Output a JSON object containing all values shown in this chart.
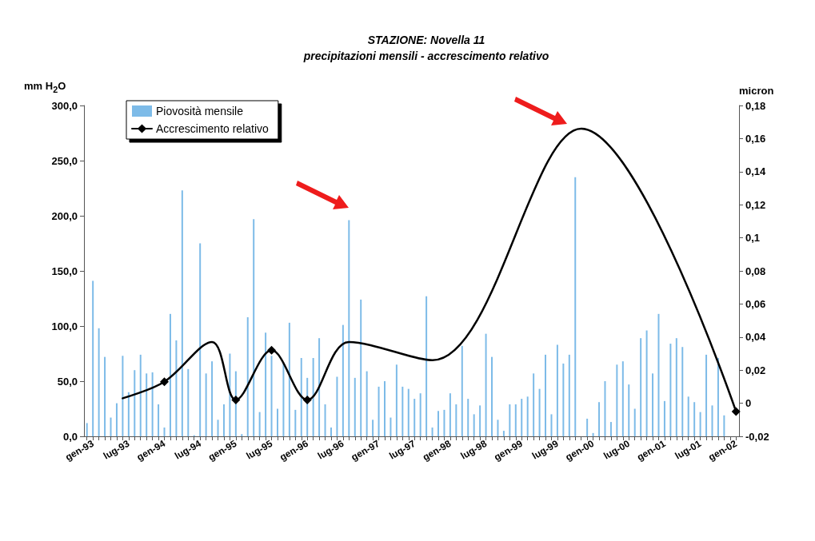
{
  "chart_data": {
    "type": "bar",
    "title": "STAZIONE: Novella 11",
    "subtitle": "precipitazioni mensili - accrescimento relativo",
    "ylabel": "mm H$_{2}$O",
    "y2label": "micron",
    "categories": [
      null,
      "gen-93",
      null,
      null,
      null,
      null,
      null,
      "lug-93",
      null,
      null,
      null,
      null,
      null,
      "gen-94",
      null,
      null,
      null,
      null,
      null,
      "lug-94",
      null,
      null,
      null,
      null,
      null,
      "gen-95",
      null,
      null,
      null,
      null,
      null,
      "lug-95",
      null,
      null,
      null,
      null,
      null,
      "gen-96",
      null,
      null,
      null,
      null,
      null,
      "lug-96",
      null,
      null,
      null,
      null,
      null,
      "gen-97",
      null,
      null,
      null,
      null,
      null,
      "lug-97",
      null,
      null,
      null,
      null,
      null,
      "gen-98",
      null,
      null,
      null,
      null,
      null,
      "lug-98",
      null,
      null,
      null,
      null,
      null,
      "gen-99",
      null,
      null,
      null,
      null,
      null,
      "lug-99",
      null,
      null,
      null,
      null,
      null,
      "gen-00",
      null,
      null,
      null,
      null,
      null,
      "lug-00",
      null,
      null,
      null,
      null,
      null,
      "gen-01",
      null,
      null,
      null,
      null,
      null,
      "lug-01",
      null,
      null,
      null,
      null,
      null,
      "gen-02"
    ],
    "series": [
      {
        "name": "Piovosità mensile",
        "color": "#7dbbe8",
        "values": [
          12,
          141,
          98,
          72,
          17,
          30,
          73,
          40,
          60,
          74,
          57,
          58,
          29,
          8,
          111,
          87,
          223,
          61,
          1,
          175,
          57,
          68,
          15,
          29,
          75,
          59,
          2,
          108,
          197,
          22,
          94,
          73,
          25,
          67,
          103,
          24,
          71,
          53,
          71,
          89,
          29,
          8,
          54,
          101,
          196,
          53,
          124,
          59,
          15,
          45,
          50,
          17,
          65,
          45,
          43,
          34,
          39,
          127,
          8,
          23,
          24,
          39,
          29,
          82,
          34,
          20,
          28,
          93,
          72,
          15,
          5,
          29,
          29,
          34,
          36,
          57,
          43,
          74,
          20,
          83,
          66,
          74,
          235,
          0,
          16,
          3,
          31,
          50,
          13,
          65,
          68,
          47,
          25,
          89,
          96,
          57,
          111,
          32,
          84,
          89,
          81,
          36,
          31,
          22,
          74,
          28,
          71,
          19,
          null,
          null
        ]
      },
      {
        "name": "Accrescimento relativo",
        "type": "line",
        "axis": "y2",
        "color": "#000000",
        "marker": "diamond",
        "values": [
          null,
          null,
          null,
          null,
          null,
          null,
          0.003,
          null,
          null,
          null,
          null,
          null,
          null,
          0.013,
          null,
          null,
          null,
          null,
          null,
          null,
          null,
          0.037,
          null,
          null,
          null,
          0.002,
          null,
          null,
          null,
          null,
          null,
          0.032,
          null,
          null,
          null,
          null,
          null,
          0.002,
          null,
          null,
          null,
          null,
          null,
          null,
          0.037,
          null,
          null,
          null,
          null,
          null,
          null,
          null,
          null,
          null,
          null,
          null,
          null,
          null,
          0.026,
          null,
          null,
          null,
          null,
          null,
          null,
          null,
          null,
          null,
          null,
          null,
          null,
          null,
          null,
          null,
          null,
          null,
          null,
          null,
          null,
          null,
          null,
          null,
          null,
          0.166,
          null,
          null,
          null,
          null,
          null,
          null,
          null,
          null,
          null,
          null,
          null,
          null,
          null,
          null,
          null,
          null,
          null,
          null,
          null,
          null,
          null,
          null,
          null,
          null,
          null,
          -0.005
        ]
      }
    ],
    "ylim": [
      0,
      300
    ],
    "yticks": [
      {
        "value": 0,
        "label": "0,0"
      },
      {
        "value": 50,
        "label": "50,0"
      },
      {
        "value": 100,
        "label": "100,0"
      },
      {
        "value": 150,
        "label": "150,0"
      },
      {
        "value": 200,
        "label": "200,0"
      },
      {
        "value": 250,
        "label": "250,0"
      },
      {
        "value": 300,
        "label": "300,0"
      }
    ],
    "y2lim": [
      -0.02,
      0.18
    ],
    "y2ticks": [
      {
        "value": -0.02,
        "label": "-0,02"
      },
      0,
      {
        "value": 0.02,
        "label": "0,02"
      },
      {
        "value": 0.04,
        "label": "0,04"
      },
      {
        "value": 0.06,
        "label": "0,06"
      },
      {
        "value": 0.08,
        "label": "0,08"
      },
      {
        "value": 0.1,
        "label": "0,1"
      },
      {
        "value": 0.12,
        "label": "0,12"
      },
      {
        "value": 0.14,
        "label": "0,14"
      },
      {
        "value": 0.16,
        "label": "0,16"
      },
      {
        "value": 0.18,
        "label": "0,18"
      }
    ],
    "grid": false,
    "legend": "top left",
    "line_style": "solid"
  }
}
